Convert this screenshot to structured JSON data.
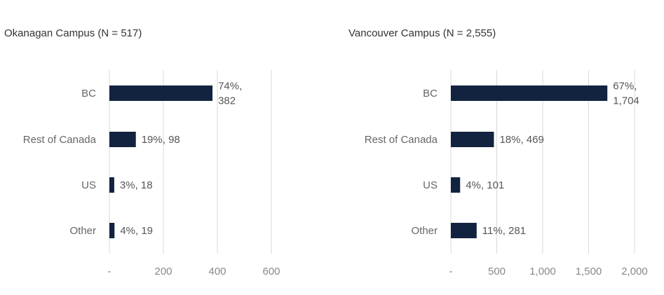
{
  "colors": {
    "bar": "#12233f",
    "grid": "#d9d9d9"
  },
  "chart_data": [
    {
      "type": "bar",
      "orientation": "horizontal",
      "title": "Okanagan Campus (N = 517)",
      "categories": [
        "BC",
        "Rest of Canada",
        "US",
        "Other"
      ],
      "values": [
        382,
        98,
        18,
        19
      ],
      "percents": [
        "74%",
        "19%",
        "3%",
        "4%"
      ],
      "data_labels": [
        [
          "74%,",
          "382"
        ],
        [
          "19%,  98"
        ],
        [
          "3%,  18"
        ],
        [
          "4%,  19"
        ]
      ],
      "xlim": [
        0,
        600
      ],
      "xticks": [
        0,
        200,
        400,
        600
      ],
      "xtick_labels": [
        "-",
        "200",
        "400",
        "600"
      ],
      "xlabel": "",
      "ylabel": "",
      "grid": true
    },
    {
      "type": "bar",
      "orientation": "horizontal",
      "title": "Vancouver Campus (N = 2,555)",
      "categories": [
        "BC",
        "Rest of Canada",
        "US",
        "Other"
      ],
      "values": [
        1704,
        469,
        101,
        281
      ],
      "percents": [
        "67%",
        "18%",
        "4%",
        "11%"
      ],
      "data_labels": [
        [
          "67%,",
          "1,704"
        ],
        [
          "18%,  469"
        ],
        [
          "4%,  101"
        ],
        [
          "11%,  281"
        ]
      ],
      "xlim": [
        0,
        2000
      ],
      "xticks": [
        0,
        500,
        1000,
        1500,
        2000
      ],
      "xtick_labels": [
        "-",
        "500",
        "1,000",
        "1,500",
        "2,000"
      ],
      "xlabel": "",
      "ylabel": "",
      "grid": true
    }
  ]
}
